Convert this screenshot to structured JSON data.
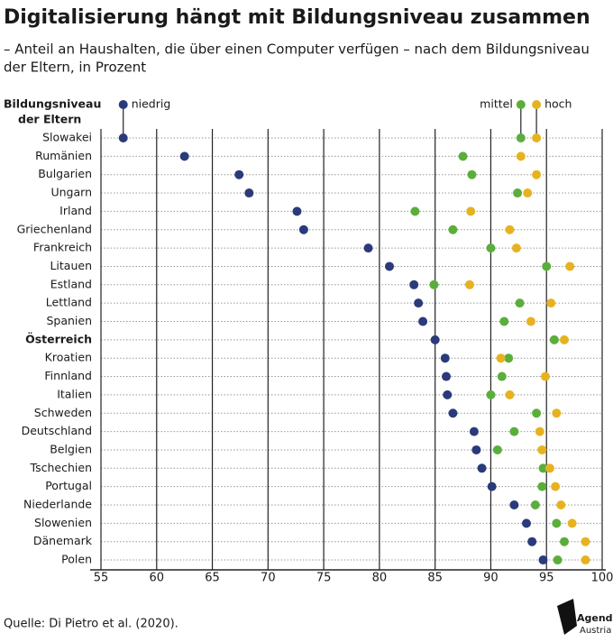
{
  "chart_data": {
    "type": "dot",
    "title": "Digitalisierung hängt mit Bildungsniveau zusammen",
    "subtitle_lines": [
      "– Anteil an Haushalten, die über einen Computer verfügen – nach dem Bildungsniveau",
      "der Eltern, in Prozent"
    ],
    "y_label_lines": [
      "Bildungsniveau",
      "der Eltern"
    ],
    "highlight": "Österreich",
    "categories": [
      "Slowakei",
      "Rumänien",
      "Bulgarien",
      "Ungarn",
      "Irland",
      "Griechenland",
      "Frankreich",
      "Litauen",
      "Estland",
      "Lettland",
      "Spanien",
      "Österreich",
      "Kroatien",
      "Finnland",
      "Italien",
      "Schweden",
      "Deutschland",
      "Belgien",
      "Tschechien",
      "Portugal",
      "Niederlande",
      "Slowenien",
      "Dänemark",
      "Polen"
    ],
    "series": [
      {
        "name": "niedrig",
        "color": "#2b3a7a",
        "values": [
          57.0,
          62.5,
          67.4,
          68.3,
          72.6,
          73.2,
          79.0,
          80.9,
          83.1,
          83.5,
          83.9,
          85.0,
          85.9,
          86.0,
          86.1,
          86.6,
          88.5,
          88.7,
          89.2,
          90.1,
          92.1,
          93.2,
          93.7,
          94.7
        ]
      },
      {
        "name": "mittel",
        "color": "#5aae3c",
        "values": [
          92.7,
          87.5,
          88.3,
          92.4,
          83.2,
          86.6,
          90.0,
          95.0,
          84.9,
          92.6,
          91.2,
          95.7,
          91.6,
          91.0,
          90.0,
          94.1,
          92.1,
          90.6,
          94.7,
          94.6,
          94.0,
          95.9,
          96.6,
          96.0
        ]
      },
      {
        "name": "hoch",
        "color": "#e6b320",
        "values": [
          94.1,
          92.7,
          94.1,
          93.3,
          88.2,
          91.7,
          92.3,
          97.1,
          88.1,
          95.4,
          93.6,
          96.6,
          90.9,
          94.9,
          91.7,
          95.9,
          94.4,
          94.6,
          95.3,
          95.8,
          96.3,
          97.3,
          98.5,
          98.5
        ]
      }
    ],
    "xlim": [
      55,
      100
    ],
    "xticks": [
      55,
      60,
      65,
      70,
      75,
      80,
      85,
      90,
      95,
      100
    ],
    "grid": true,
    "source": "Quelle: Di Pietro et al. (2020).",
    "logo_lines": [
      "Agenda",
      "Austria"
    ]
  }
}
